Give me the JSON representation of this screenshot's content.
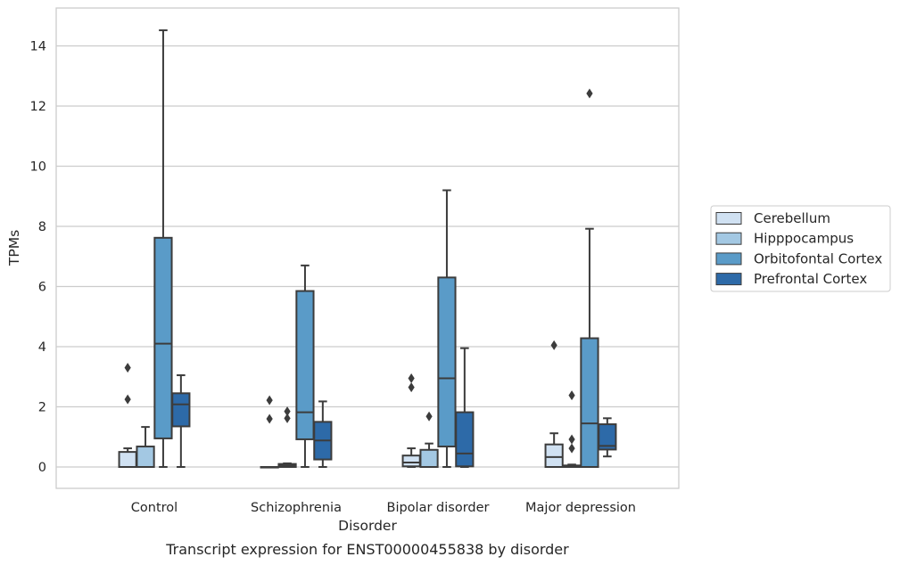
{
  "caption": "Transcript expression for ENST00000455838 by disorder",
  "chart_data": {
    "type": "box",
    "title": "",
    "xlabel": "Disorder",
    "ylabel": "TPMs",
    "ylim": [
      -0.7,
      15.3
    ],
    "yticks": [
      0,
      2,
      4,
      6,
      8,
      10,
      12,
      14
    ],
    "grid": "horizontal",
    "legend_position": "right",
    "categories": [
      "Control",
      "Schizophrenia",
      "Bipolar disorder",
      "Major depression"
    ],
    "series": [
      {
        "name": "Cerebellum",
        "color": "#d0e1f2",
        "boxes": [
          {
            "whislo": 0,
            "q1": 0,
            "med": 0,
            "q3": 0.5,
            "whishi": 0.62,
            "fliers": [
              2.25,
              3.3
            ]
          },
          {
            "whislo": 0,
            "q1": 0,
            "med": 0,
            "q3": 0,
            "whishi": 0,
            "fliers": [
              1.6,
              2.22
            ]
          },
          {
            "whislo": 0,
            "q1": 0.02,
            "med": 0.15,
            "q3": 0.38,
            "whishi": 0.62,
            "fliers": [
              2.65,
              2.95
            ]
          },
          {
            "whislo": 0,
            "q1": 0,
            "med": 0.33,
            "q3": 0.75,
            "whishi": 1.12,
            "fliers": [
              4.05
            ]
          }
        ]
      },
      {
        "name": "Hipppocampus",
        "color": "#a3c8e3",
        "boxes": [
          {
            "whislo": 0,
            "q1": 0,
            "med": 0,
            "q3": 0.68,
            "whishi": 1.33,
            "fliers": []
          },
          {
            "whislo": 0,
            "q1": 0,
            "med": 0.05,
            "q3": 0.1,
            "whishi": 0.12,
            "fliers": [
              1.62,
              1.85
            ]
          },
          {
            "whislo": 0,
            "q1": 0,
            "med": 0,
            "q3": 0.57,
            "whishi": 0.78,
            "fliers": [
              1.68
            ]
          },
          {
            "whislo": 0,
            "q1": 0,
            "med": 0.02,
            "q3": 0.05,
            "whishi": 0.08,
            "fliers": [
              0.62,
              0.92,
              2.38
            ]
          }
        ]
      },
      {
        "name": "Orbitofontal Cortex",
        "color": "#5a9bc8",
        "boxes": [
          {
            "whislo": 0,
            "q1": 0.95,
            "med": 4.1,
            "q3": 7.62,
            "whishi": 14.52,
            "fliers": []
          },
          {
            "whislo": 0,
            "q1": 0.92,
            "med": 1.82,
            "q3": 5.85,
            "whishi": 6.7,
            "fliers": []
          },
          {
            "whislo": 0,
            "q1": 0.68,
            "med": 2.95,
            "q3": 6.3,
            "whishi": 9.2,
            "fliers": []
          },
          {
            "whislo": 0,
            "q1": 0,
            "med": 1.45,
            "q3": 4.28,
            "whishi": 7.92,
            "fliers": [
              12.42
            ]
          }
        ]
      },
      {
        "name": "Prefrontal Cortex",
        "color": "#2d6aa8",
        "boxes": [
          {
            "whislo": 0,
            "q1": 1.35,
            "med": 2.08,
            "q3": 2.45,
            "whishi": 3.05,
            "fliers": []
          },
          {
            "whislo": 0,
            "q1": 0.25,
            "med": 0.88,
            "q3": 1.5,
            "whishi": 2.18,
            "fliers": []
          },
          {
            "whislo": 0,
            "q1": 0.02,
            "med": 0.45,
            "q3": 1.82,
            "whishi": 3.95,
            "fliers": []
          },
          {
            "whislo": 0.35,
            "q1": 0.58,
            "med": 0.7,
            "q3": 1.42,
            "whishi": 1.62,
            "fliers": []
          }
        ]
      }
    ]
  }
}
